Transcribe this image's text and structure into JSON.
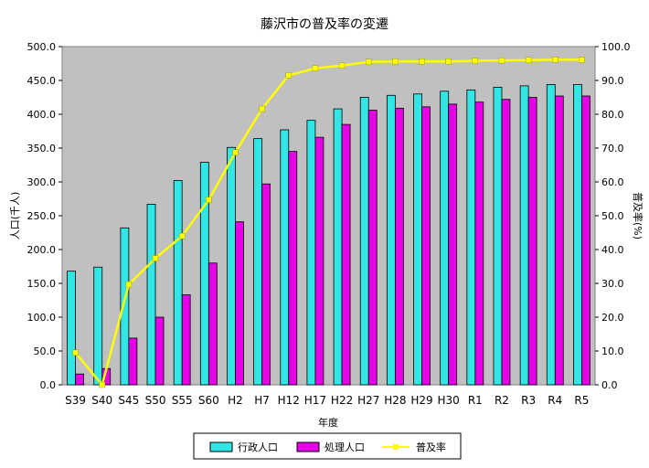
{
  "chart_data": {
    "type": "bar",
    "title": "藤沢市の普及率の変遷",
    "xlabel": "年度",
    "ylabel_left": "人口(千人)",
    "ylabel_right": "普及率(%)",
    "categories": [
      "S39",
      "S40",
      "S45",
      "S50",
      "S55",
      "S60",
      "H2",
      "H7",
      "H12",
      "H17",
      "H22",
      "H27",
      "H28",
      "H29",
      "H30",
      "R1",
      "R2",
      "R3",
      "R4",
      "R5"
    ],
    "y_left": {
      "min": 0,
      "max": 500,
      "step": 50,
      "tick_labels": [
        "0.0",
        "50.0",
        "100.0",
        "150.0",
        "200.0",
        "250.0",
        "300.0",
        "350.0",
        "400.0",
        "450.0",
        "500.0"
      ]
    },
    "y_right": {
      "min": 0,
      "max": 100,
      "step": 10,
      "tick_labels": [
        "0.0",
        "10.0",
        "20.0",
        "30.0",
        "40.0",
        "50.0",
        "60.0",
        "70.0",
        "80.0",
        "90.0",
        "100.0"
      ]
    },
    "series": [
      {
        "name": "行政人口",
        "axis": "left",
        "kind": "bar",
        "color": "#33e6e6",
        "values": [
          168,
          174,
          232,
          267,
          302,
          329,
          351,
          364,
          377,
          391,
          408,
          425,
          428,
          430,
          434,
          436,
          440,
          442,
          444,
          444
        ]
      },
      {
        "name": "処理人口",
        "axis": "left",
        "kind": "bar",
        "color": "#e600e6",
        "values": [
          16,
          24,
          69,
          100,
          133,
          180,
          241,
          297,
          345,
          366,
          385,
          406,
          409,
          411,
          415,
          418,
          422,
          425,
          427,
          427
        ]
      },
      {
        "name": "普及率",
        "axis": "right",
        "kind": "line",
        "color": "#ffff00",
        "values": [
          9.5,
          0,
          29.7,
          37.4,
          44.0,
          54.7,
          68.7,
          81.6,
          91.5,
          93.6,
          94.4,
          95.5,
          95.6,
          95.6,
          95.6,
          95.8,
          95.9,
          96.0,
          96.1,
          96.1
        ]
      }
    ],
    "plot_background": "#c0c0c0",
    "grid": false,
    "legend_placement": "bottom"
  }
}
